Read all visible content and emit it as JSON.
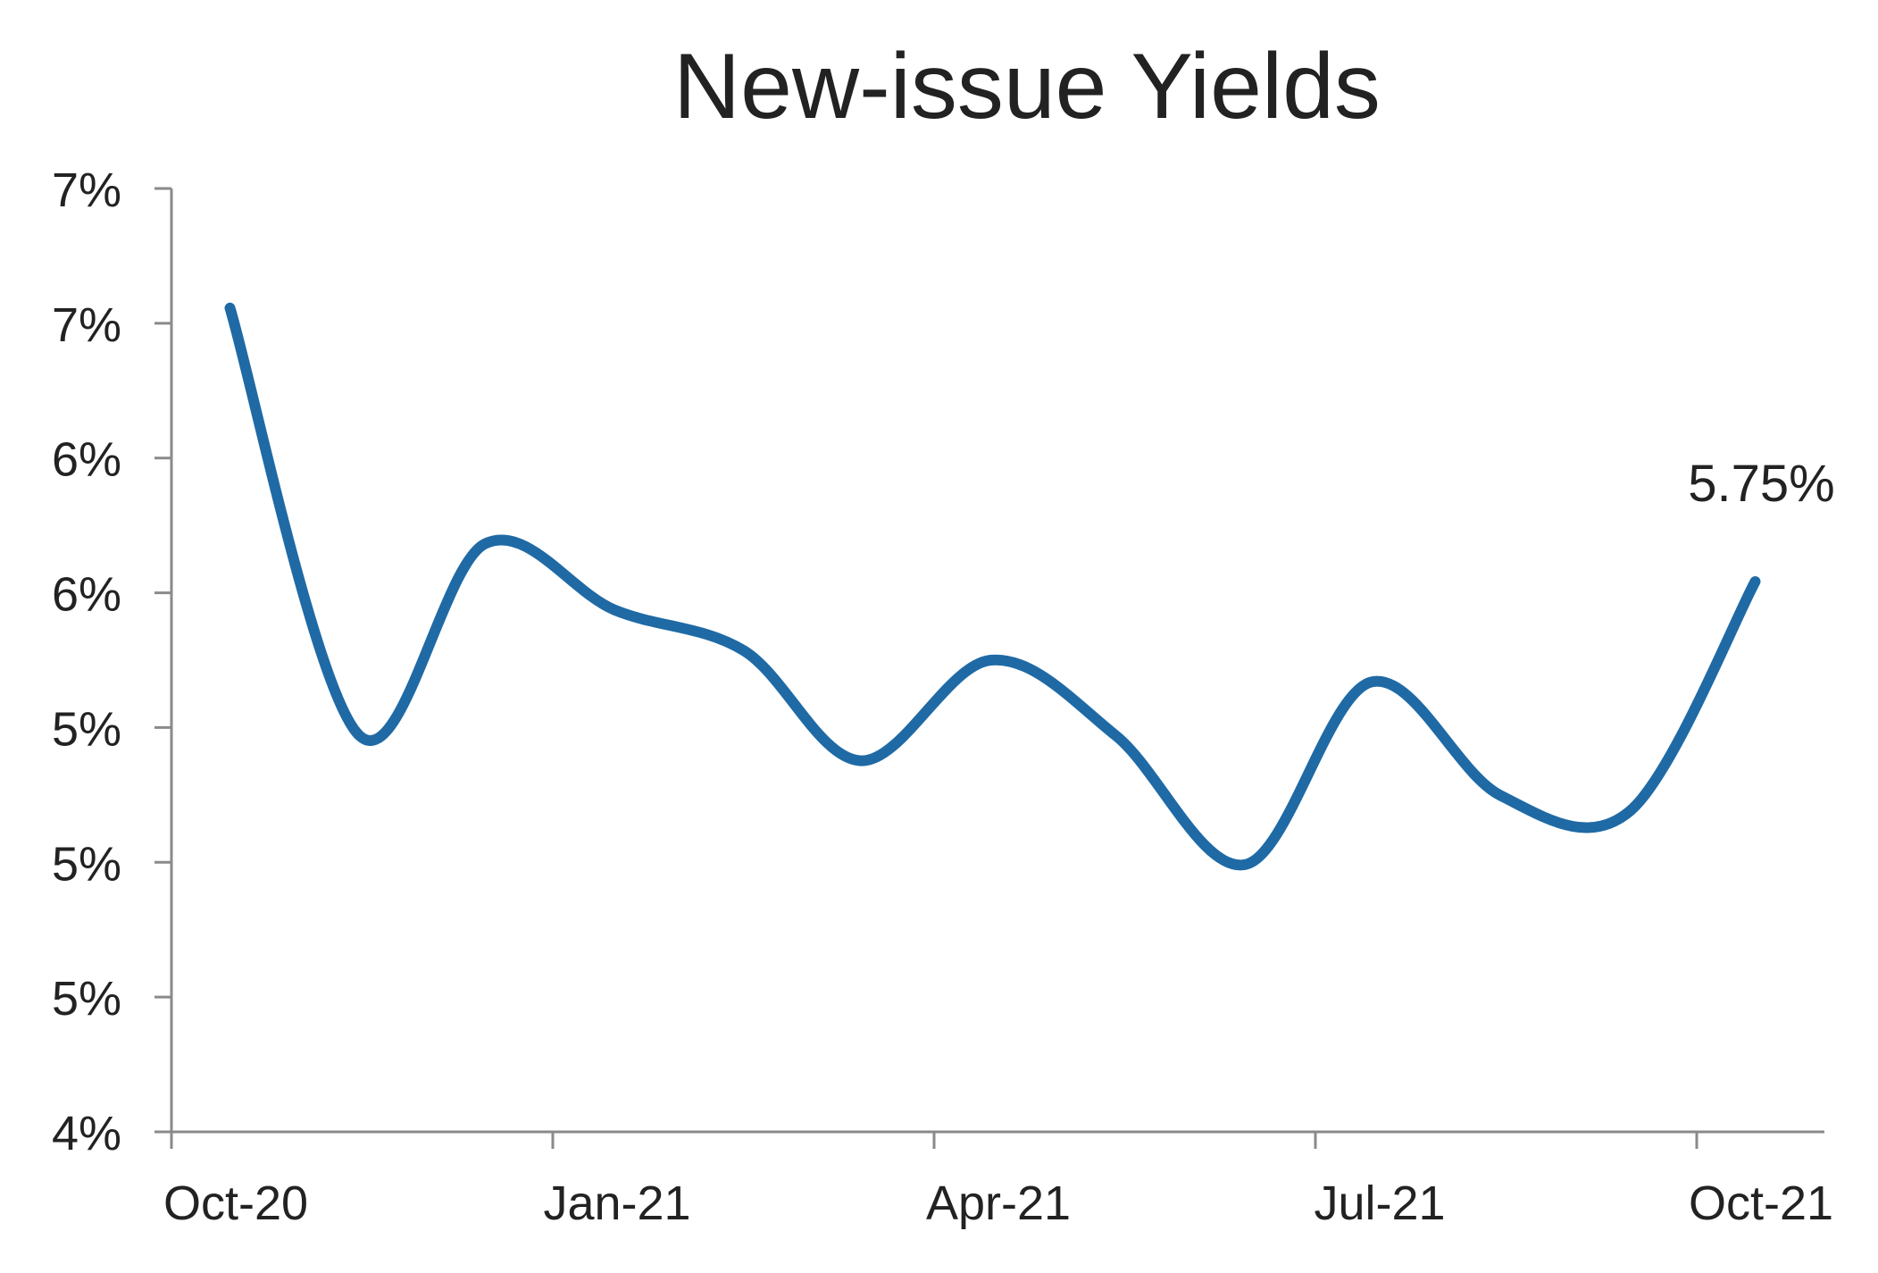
{
  "chart_data": {
    "type": "line",
    "title": "New-issue Yields",
    "xlabel": "",
    "ylabel": "",
    "x_tick_labels": [
      "Oct-20",
      "Jan-21",
      "Apr-21",
      "Jul-21",
      "Oct-21"
    ],
    "y_tick_labels": [
      "4%",
      "5%",
      "5%",
      "5%",
      "6%",
      "6%",
      "7%",
      "7%"
    ],
    "ylim": [
      4.0,
      7.0
    ],
    "grid": false,
    "legend": "none",
    "series": [
      {
        "color": "#1f6aa5",
        "points": [
          {
            "x": "2020-10-15",
            "y": 6.62
          },
          {
            "x": "2020-11-15",
            "y": 5.26
          },
          {
            "x": "2020-12-15",
            "y": 5.87
          },
          {
            "x": "2021-01-15",
            "y": 5.66
          },
          {
            "x": "2021-02-15",
            "y": 5.53
          },
          {
            "x": "2021-03-15",
            "y": 5.18
          },
          {
            "x": "2021-04-15",
            "y": 5.5
          },
          {
            "x": "2021-05-15",
            "y": 5.26
          },
          {
            "x": "2021-06-15",
            "y": 4.85
          },
          {
            "x": "2021-07-15",
            "y": 5.43
          },
          {
            "x": "2021-08-15",
            "y": 5.07
          },
          {
            "x": "2021-09-15",
            "y": 5.02
          },
          {
            "x": "2021-10-15",
            "y": 5.75
          }
        ]
      }
    ],
    "annotations": [
      {
        "text": "5.75%",
        "x": "2021-10-15",
        "y": 5.75
      }
    ]
  }
}
